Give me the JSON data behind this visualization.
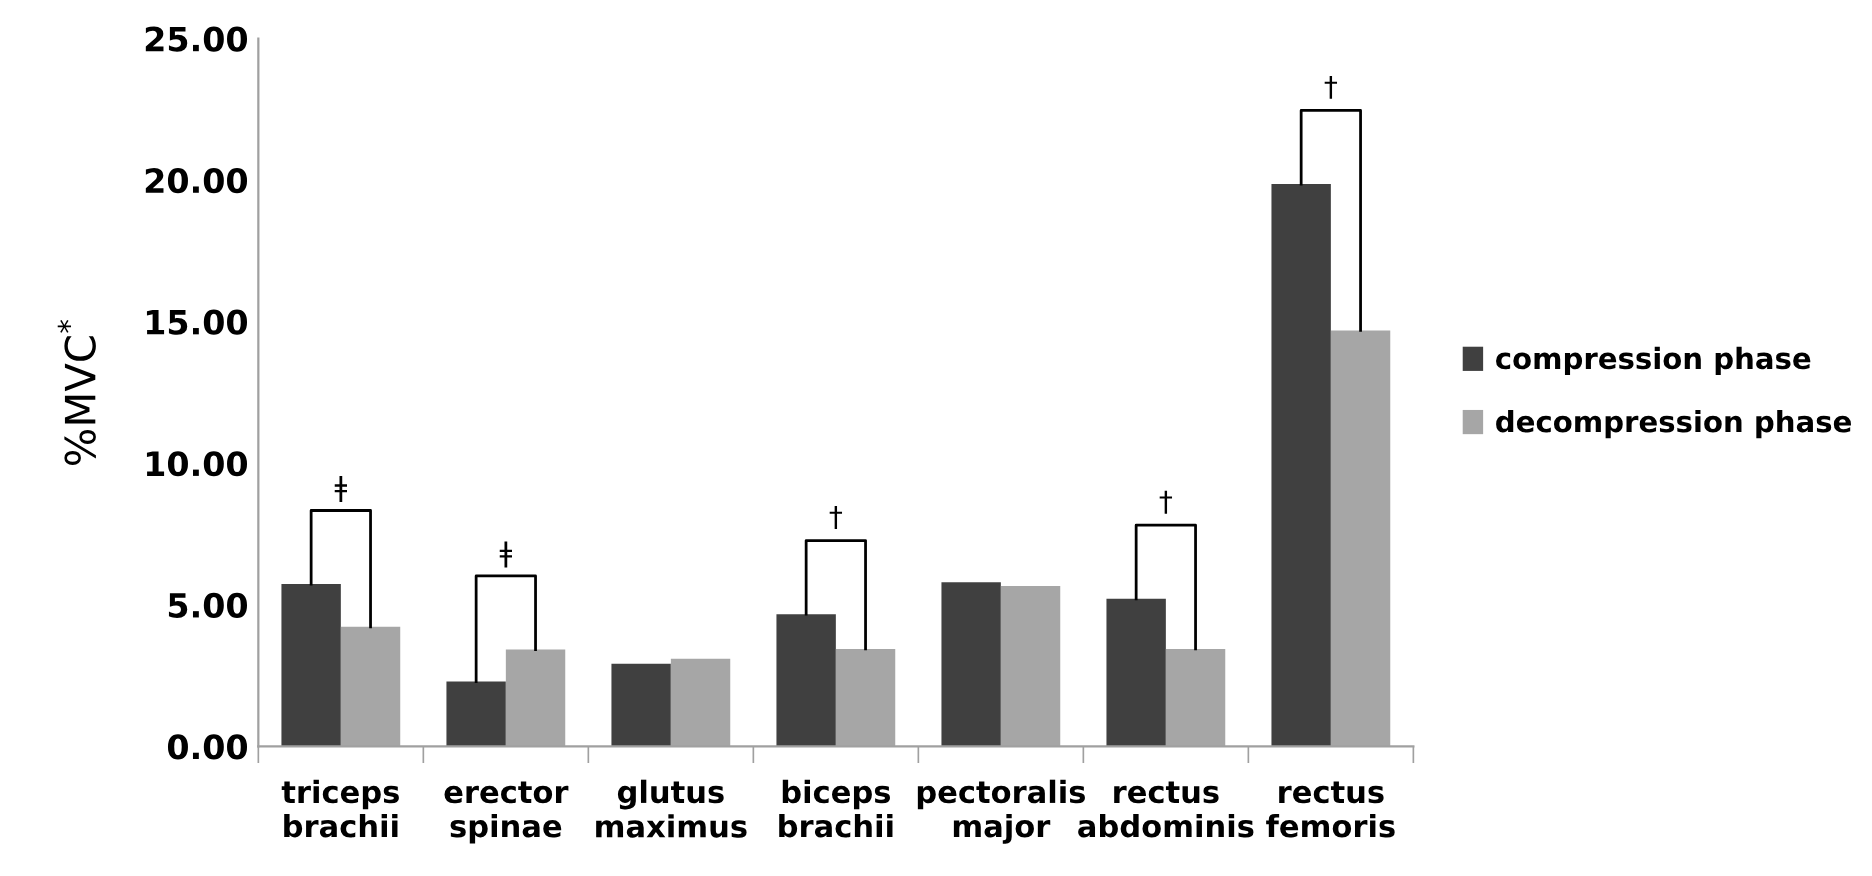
{
  "chart_data": {
    "type": "bar",
    "ylabel": "%MVC$^{*}$",
    "categories": [
      "triceps\nbrachii",
      "erector\nspinae",
      "glutus\nmaximus",
      "biceps\nbrachii",
      "pectoralis\nmajor",
      "rectus\nabdominis",
      "rectus\nfemoris"
    ],
    "series": [
      {
        "name": "compression phase",
        "color": "#404040",
        "values": [
          5.73,
          2.29,
          2.92,
          4.67,
          5.8,
          5.21,
          19.86
        ]
      },
      {
        "name": "decompression phase",
        "color": "#a6a6a6",
        "values": [
          4.22,
          3.42,
          3.09,
          3.44,
          5.66,
          3.44,
          14.69
        ]
      }
    ],
    "ylim": [
      0,
      25
    ],
    "yticks": [
      {
        "value": 0,
        "label": "0.00"
      },
      {
        "value": 5,
        "label": "5.00"
      },
      {
        "value": 10,
        "label": "10.00"
      },
      {
        "value": 15,
        "label": "15.00"
      },
      {
        "value": 20,
        "label": "20.00"
      },
      {
        "value": 25,
        "label": "25.00"
      }
    ],
    "annotations": [
      "ǂ",
      "ǂ",
      "†",
      "†",
      "†"
    ],
    "grid": false,
    "legend": "right"
  }
}
